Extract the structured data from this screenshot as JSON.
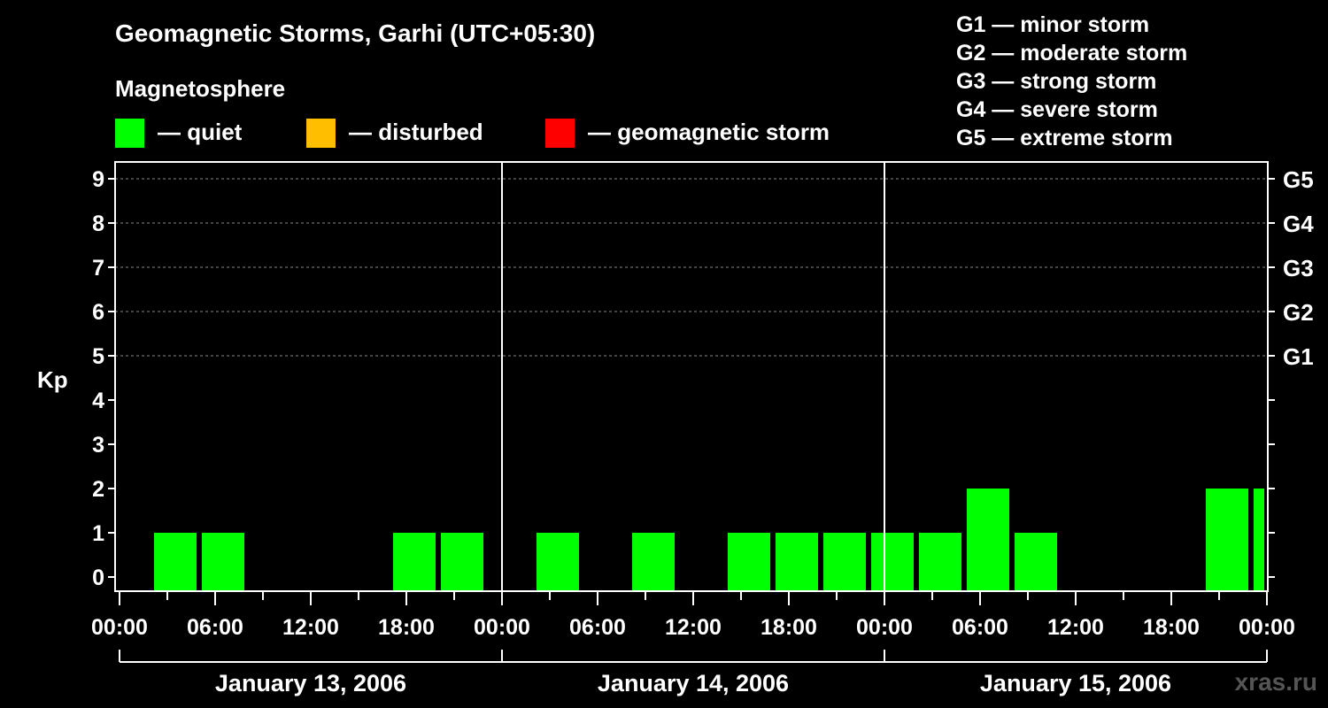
{
  "title": "Geomagnetic Storms, Garhi (UTC+05:30)",
  "subtitle": "Magnetosphere",
  "legend": [
    {
      "label": "— quiet",
      "color": "#00ff00"
    },
    {
      "label": "— disturbed",
      "color": "#ffbf00"
    },
    {
      "label": "— geomagnetic storm",
      "color": "#ff0000"
    }
  ],
  "g_scale": [
    "G1 — minor storm",
    "G2 — moderate storm",
    "G3 — strong storm",
    "G4 — severe storm",
    "G5 — extreme storm"
  ],
  "watermark": "xras.ru",
  "chart_data": {
    "type": "bar",
    "ylabel": "Kp",
    "ylim": [
      0,
      9
    ],
    "yticks": [
      "0",
      "1",
      "2",
      "3",
      "4",
      "5",
      "6",
      "7",
      "8",
      "9"
    ],
    "right_ticks": [
      {
        "kp": 5,
        "label": "G1"
      },
      {
        "kp": 6,
        "label": "G2"
      },
      {
        "kp": 7,
        "label": "G3"
      },
      {
        "kp": 8,
        "label": "G4"
      },
      {
        "kp": 9,
        "label": "G5"
      }
    ],
    "xlim_hours": [
      0,
      72
    ],
    "xtick_labels": [
      "00:00",
      "06:00",
      "12:00",
      "18:00",
      "00:00",
      "06:00",
      "12:00",
      "18:00",
      "00:00",
      "06:00",
      "12:00",
      "18:00",
      "00:00"
    ],
    "days": [
      "January 13, 2006",
      "January 14, 2006",
      "January 15, 2006"
    ],
    "bar_interval_hours": 3,
    "bars": [
      {
        "start_hour": 2.5,
        "kp": 1
      },
      {
        "start_hour": 5.5,
        "kp": 1
      },
      {
        "start_hour": 8.5,
        "kp": 0
      },
      {
        "start_hour": 11.5,
        "kp": 0
      },
      {
        "start_hour": 14.5,
        "kp": 0
      },
      {
        "start_hour": 17.5,
        "kp": 1
      },
      {
        "start_hour": 20.5,
        "kp": 1
      },
      {
        "start_hour": 23.5,
        "kp": 0
      },
      {
        "start_hour": 26.5,
        "kp": 1
      },
      {
        "start_hour": 29.5,
        "kp": 0
      },
      {
        "start_hour": 32.5,
        "kp": 1
      },
      {
        "start_hour": 35.5,
        "kp": 0
      },
      {
        "start_hour": 38.5,
        "kp": 1
      },
      {
        "start_hour": 41.5,
        "kp": 1
      },
      {
        "start_hour": 44.5,
        "kp": 1
      },
      {
        "start_hour": 47.5,
        "kp": 1
      },
      {
        "start_hour": 50.5,
        "kp": 1
      },
      {
        "start_hour": 53.5,
        "kp": 2
      },
      {
        "start_hour": 56.5,
        "kp": 1
      },
      {
        "start_hour": 59.5,
        "kp": 0
      },
      {
        "start_hour": 62.5,
        "kp": 0
      },
      {
        "start_hour": 65.5,
        "kp": 0
      },
      {
        "start_hour": 68.5,
        "kp": 2
      },
      {
        "start_hour": 71.5,
        "kp": 2
      }
    ],
    "bar_color": "#00ff00",
    "grid": "dashed horizontal at Kp 5-9"
  }
}
